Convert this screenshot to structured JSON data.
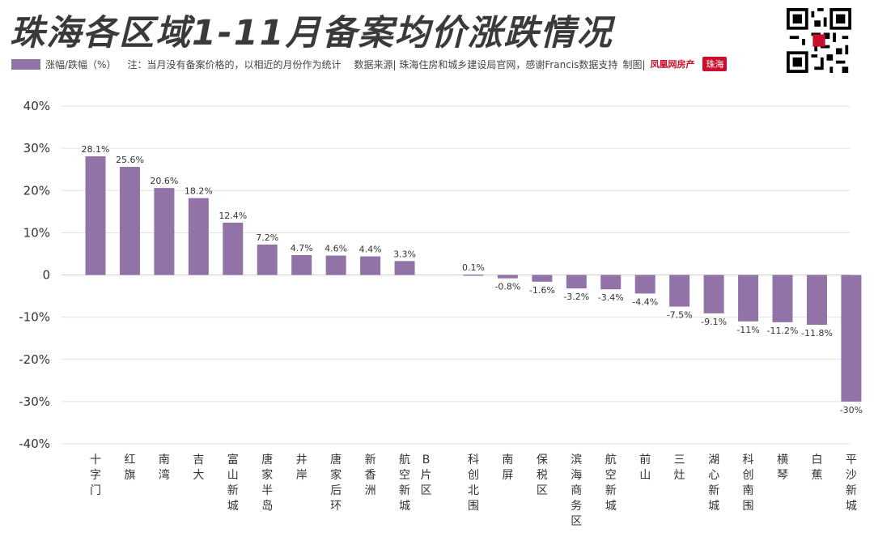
{
  "header": {
    "title": "珠海各区域1-11月备案均价涨跌情况",
    "legend_label": "涨幅/跌幅（%）",
    "note": "注：当月没有备案价格的，以相近的月份作为统计",
    "source": "数据来源| 珠海住房和城乡建设局官网，感谢Francis数据支持",
    "made_by": "制图|",
    "logo_text": "凤凰网房产",
    "logo_badge": "珠海"
  },
  "colors": {
    "bar": "#9173a8",
    "grid": "#e0e0e0",
    "text": "#333333"
  },
  "chart_data": {
    "type": "bar",
    "title": "珠海各区域1-11月备案均价涨跌情况",
    "ylabel": "",
    "xlabel": "",
    "ylim": [
      -40,
      40
    ],
    "yticks": [
      "40%",
      "30%",
      "20%",
      "10%",
      "0",
      "-10%",
      "-20%",
      "-30%",
      "-40%"
    ],
    "ytick_values": [
      40,
      30,
      20,
      10,
      0,
      -10,
      -20,
      -30,
      -40
    ],
    "grid": true,
    "series": [
      {
        "name": "涨幅/跌幅（%）"
      }
    ],
    "categories": [
      "十字门",
      "红旗",
      "南湾",
      "吉大",
      "富山新城",
      "唐家半岛",
      "井岸",
      "唐家后环",
      "新香洲",
      "航空新城",
      "B片区",
      "科创北围",
      "南屏",
      "保税区",
      "滨海商务区",
      "航空新城",
      "前山",
      "三灶",
      "湖心新城",
      "科创南围",
      "横琴",
      "白蕉",
      "平沙新城"
    ],
    "values": [
      28.1,
      25.6,
      20.6,
      18.2,
      12.4,
      7.2,
      4.7,
      4.6,
      4.4,
      3.3,
      null,
      0.1,
      -0.8,
      -1.6,
      -3.2,
      -3.4,
      -4.4,
      -7.5,
      -9.1,
      -11,
      -11.2,
      -11.8,
      -30
    ],
    "value_labels": [
      "28.1%",
      "25.6%",
      "20.6%",
      "18.2%",
      "12.4%",
      "7.2%",
      "4.7%",
      "4.6%",
      "4.4%",
      "3.3%",
      "",
      "0.1%",
      "-0.8%",
      "-1.6%",
      "-3.2%",
      "-3.4%",
      "-4.4%",
      "-7.5%",
      "-9.1%",
      "-11%",
      "-11.2%",
      "-11.8%",
      "-30%"
    ]
  }
}
